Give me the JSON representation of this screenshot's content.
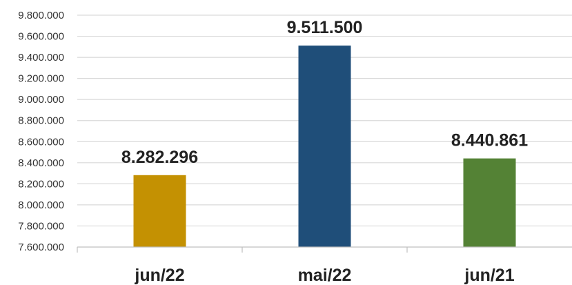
{
  "chart_data": {
    "type": "bar",
    "title": "",
    "xlabel": "",
    "ylabel": "",
    "categories": [
      "jun/22",
      "mai/22",
      "jun/21"
    ],
    "values": [
      8282296,
      9511500,
      8440861
    ],
    "data_labels": [
      "8.282.296",
      "9.511.500",
      "8.440.861"
    ],
    "bar_colors": [
      "#c49102",
      "#1f4e79",
      "#548235"
    ],
    "ylim": [
      7600000,
      9800000
    ],
    "ytick_step": 200000,
    "yticks": [
      "7.600.000",
      "7.800.000",
      "8.000.000",
      "8.200.000",
      "8.400.000",
      "8.600.000",
      "8.800.000",
      "9.000.000",
      "9.200.000",
      "9.400.000",
      "9.600.000",
      "9.800.000"
    ],
    "grid": true,
    "legend": "none"
  }
}
